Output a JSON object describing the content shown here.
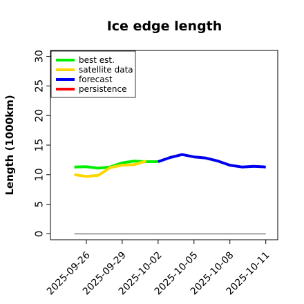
{
  "chart_data": {
    "type": "line",
    "title": "Ice edge length",
    "xlabel": "",
    "ylabel": "Length (1000km)",
    "ylim": [
      -1,
      31
    ],
    "xlim": [
      "2025-09-23",
      "2025-10-12"
    ],
    "grid": false,
    "legend_position": "top-left",
    "y_ticks": [
      "0",
      "5",
      "10",
      "15",
      "20",
      "25",
      "30"
    ],
    "y_tick_values": [
      0,
      5,
      10,
      15,
      20,
      25,
      30
    ],
    "x_ticks": [
      "2025-09-26",
      "2025-09-29",
      "2025-10-02",
      "2025-10-05",
      "2025-10-08",
      "2025-10-11"
    ],
    "x_tick_colors": [
      "#000000",
      "#000000",
      "#228b22",
      "#000000",
      "#000000",
      "#000000"
    ],
    "reference_line": {
      "color": "#808080",
      "x": [
        "2025-09-25",
        "2025-10-11"
      ],
      "y": [
        0,
        0
      ]
    },
    "series": [
      {
        "name": "best est.",
        "color": "#00ee00",
        "x": [
          "2025-09-25",
          "2025-09-26",
          "2025-09-27",
          "2025-09-28",
          "2025-09-29",
          "2025-09-30",
          "2025-10-01",
          "2025-10-02"
        ],
        "y": [
          11.3,
          11.35,
          11.1,
          11.3,
          12.0,
          12.3,
          12.2,
          12.2
        ]
      },
      {
        "name": "satellite data",
        "color": "#ffd700",
        "x": [
          "2025-09-25",
          "2025-09-26",
          "2025-09-27",
          "2025-09-28",
          "2025-09-29",
          "2025-09-30",
          "2025-10-01"
        ],
        "y": [
          10.0,
          9.7,
          9.9,
          11.2,
          11.6,
          11.7,
          12.3
        ]
      },
      {
        "name": "forecast",
        "color": "#0000ee",
        "x": [
          "2025-10-02",
          "2025-10-03",
          "2025-10-04",
          "2025-10-05",
          "2025-10-06",
          "2025-10-07",
          "2025-10-08",
          "2025-10-09",
          "2025-10-10",
          "2025-10-11"
        ],
        "y": [
          12.2,
          12.9,
          13.4,
          13.0,
          12.8,
          12.3,
          11.6,
          11.3,
          11.4,
          11.3
        ]
      },
      {
        "name": "persistence",
        "color": "#ff0000",
        "x": [],
        "y": []
      }
    ]
  }
}
